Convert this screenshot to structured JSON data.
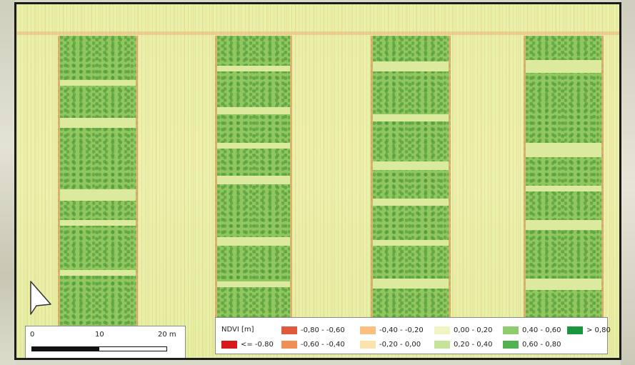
{
  "legend": {
    "title": "NDVI [m]",
    "classes": [
      {
        "label": "<= -0.80",
        "color": "#d7191c"
      },
      {
        "label": "-0,80 - -0,60",
        "color": "#e0593c"
      },
      {
        "label": "-0,60 - -0,40",
        "color": "#ef8f55"
      },
      {
        "label": "-0,40 - -0,20",
        "color": "#fbbf7f"
      },
      {
        "label": "-0,20 - 0,00",
        "color": "#fce3ae"
      },
      {
        "label": "0,00 - 0,20",
        "color": "#f3f4c4"
      },
      {
        "label": "0,20 - 0,40",
        "color": "#c6e39a"
      },
      {
        "label": "0,40 - 0,60",
        "color": "#8fcb6f"
      },
      {
        "label": "0,60 - 0,80",
        "color": "#52b151"
      },
      {
        "label": "> 0,80",
        "color": "#1a9641"
      }
    ]
  },
  "scale_bar": {
    "labels": [
      "0",
      "10",
      "20 m"
    ]
  },
  "icons": {
    "north_arrow": "north-arrow-icon"
  },
  "colors": {
    "background_field": "#eef0ad",
    "vegetation": "#8fc663",
    "bare_soil_edge": "#ecb478"
  }
}
